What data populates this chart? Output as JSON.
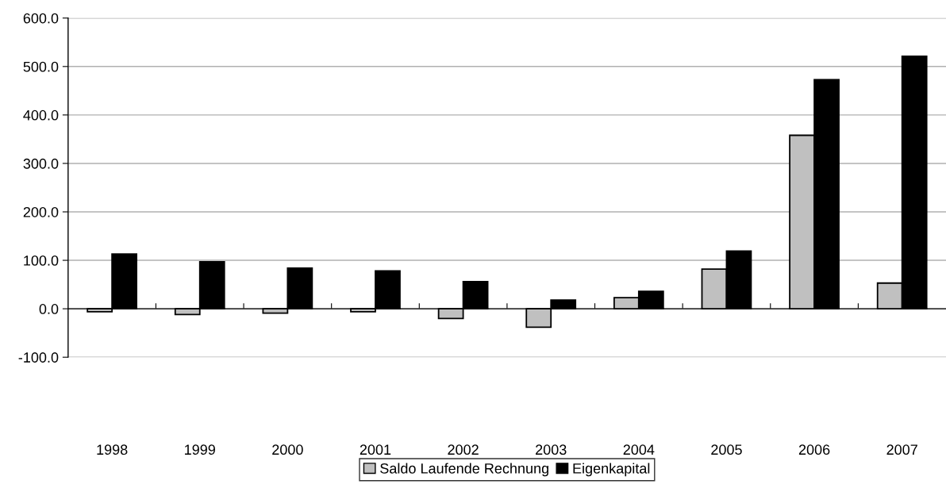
{
  "chart_data": {
    "type": "bar",
    "categories": [
      "1998",
      "1999",
      "2000",
      "2001",
      "2002",
      "2003",
      "2004",
      "2005",
      "2006",
      "2007"
    ],
    "series": [
      {
        "name": "Saldo Laufende Rechnung",
        "color": "#c0c0c0",
        "values": [
          -6,
          -12,
          -9,
          -6,
          -20,
          -38,
          23,
          82,
          358,
          53
        ]
      },
      {
        "name": "Eigenkapital",
        "color": "#000000",
        "values": [
          113,
          97,
          84,
          78,
          56,
          18,
          36,
          119,
          473,
          521
        ]
      }
    ],
    "ylim": [
      -100,
      600
    ],
    "yticks": [
      {
        "value": -100,
        "label": "-100.0"
      },
      {
        "value": 0,
        "label": "0.0"
      },
      {
        "value": 100,
        "label": "100.0"
      },
      {
        "value": 200,
        "label": "200.0"
      },
      {
        "value": 300,
        "label": "300.0"
      },
      {
        "value": 400,
        "label": "400.0"
      },
      {
        "value": 500,
        "label": "500.0"
      },
      {
        "value": 600,
        "label": "600.0"
      }
    ],
    "grid": "y",
    "legend": "bottom"
  }
}
